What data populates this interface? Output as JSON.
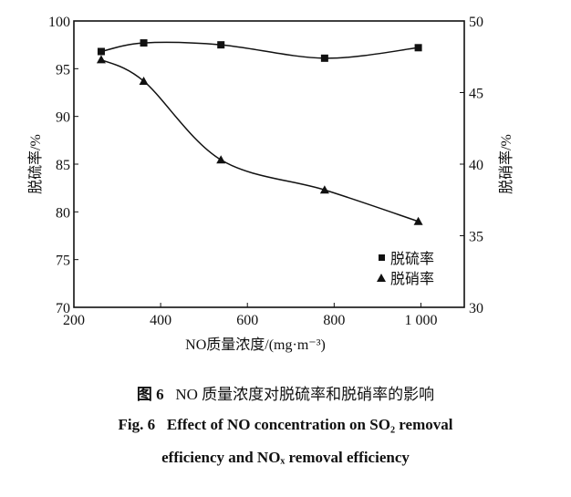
{
  "chart_data": {
    "type": "line",
    "xlabel": "NO质量浓度/(mg·m⁻³)",
    "ylabel_left": "脱硫率/%",
    "ylabel_right": "脱硝率/%",
    "xlim": [
      200,
      1100
    ],
    "ylim_left": [
      70,
      100
    ],
    "ylim_right": [
      30,
      50
    ],
    "xticks": [
      200,
      400,
      600,
      800,
      1000
    ],
    "xtick_labels": [
      "200",
      "400",
      "600",
      "800",
      "1 000"
    ],
    "yticks_left": [
      70,
      75,
      80,
      85,
      90,
      95,
      100
    ],
    "yticks_right": [
      30,
      35,
      40,
      45,
      50
    ],
    "grid": false,
    "legend_position": "bottom-right",
    "series": [
      {
        "name": "脱硫率",
        "axis": "left",
        "marker": "square",
        "x": [
          263,
          361,
          539,
          778,
          994
        ],
        "values": [
          96.8,
          97.7,
          97.5,
          96.1,
          97.2
        ]
      },
      {
        "name": "脱硝率",
        "axis": "right",
        "marker": "triangle",
        "x": [
          263,
          361,
          539,
          778,
          994
        ],
        "values": [
          47.3,
          45.8,
          40.3,
          38.2,
          36.0
        ]
      }
    ]
  },
  "caption": {
    "cn_label": "图 6",
    "cn_text": "NO 质量浓度对脱硫率和脱硝率的影响",
    "en_label": "Fig. 6",
    "en_line1": "Effect of NO concentration on SO₂ removal",
    "en_line2": "efficiency and NOₓ removal efficiency"
  }
}
